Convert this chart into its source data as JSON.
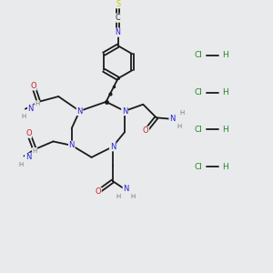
{
  "bg_color": "#e8eaec",
  "bond_color": "#1a1a1a",
  "N_color": "#2222cc",
  "O_color": "#cc2222",
  "S_color": "#cccc00",
  "H_color": "#777777",
  "HCl_color": "#228822",
  "figsize": [
    3.0,
    3.0
  ],
  "dpi": 100,
  "xlim": [
    0,
    10
  ],
  "ylim": [
    0,
    10
  ]
}
